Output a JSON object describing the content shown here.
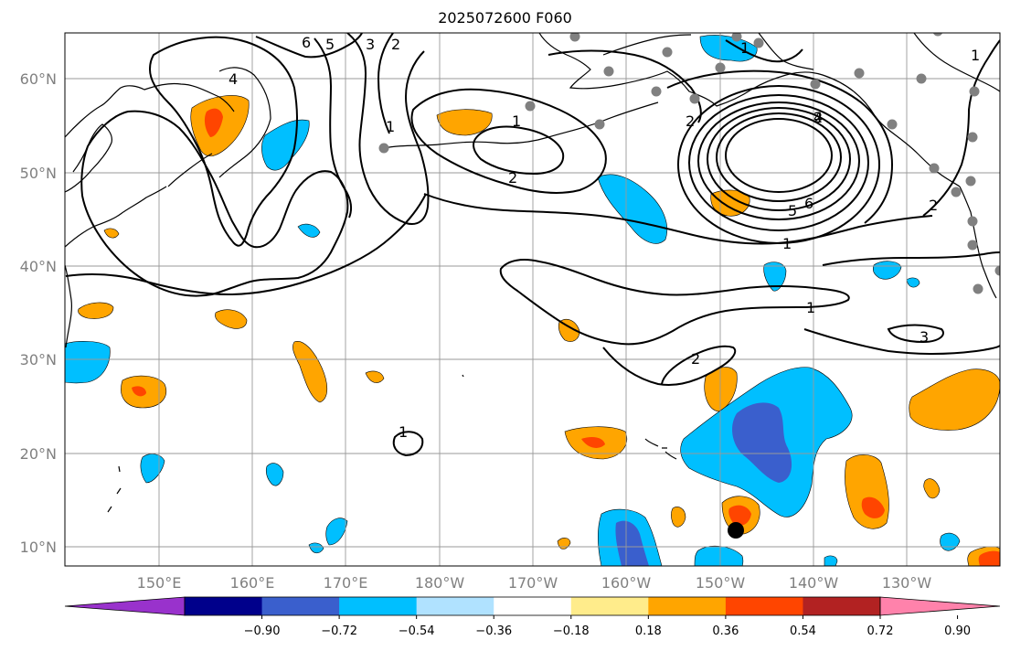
{
  "title": "2025072600 F060",
  "map": {
    "lat_labels": [
      "60°N",
      "50°N",
      "40°N",
      "30°N",
      "20°N",
      "10°N"
    ],
    "lon_labels": [
      "150°E",
      "160°E",
      "170°E",
      "180°W",
      "170°W",
      "160°W",
      "150°W",
      "140°W",
      "130°W"
    ],
    "contour_labels": [
      "6",
      "5",
      "4",
      "3",
      "2",
      "1",
      "2",
      "2",
      "1",
      "2",
      "5",
      "6",
      "1",
      "1",
      "1",
      "2",
      "3",
      "2",
      "1",
      "4",
      "1"
    ]
  },
  "colorbar": {
    "ticks": [
      "−0.90",
      "−0.72",
      "−0.54",
      "−0.36",
      "−0.18",
      "0.18",
      "0.36",
      "0.54",
      "0.72",
      "0.90"
    ],
    "colors": [
      "#9932cc",
      "#00008b",
      "#3a5fcd",
      "#00bfff",
      "#b0e2ff",
      "#ffffff",
      "#ffec8b",
      "#ffa500",
      "#ff4500",
      "#b22222",
      "#ff82ab"
    ]
  },
  "colors": {
    "station_marker": "#808080",
    "storm_marker": "#000000"
  }
}
